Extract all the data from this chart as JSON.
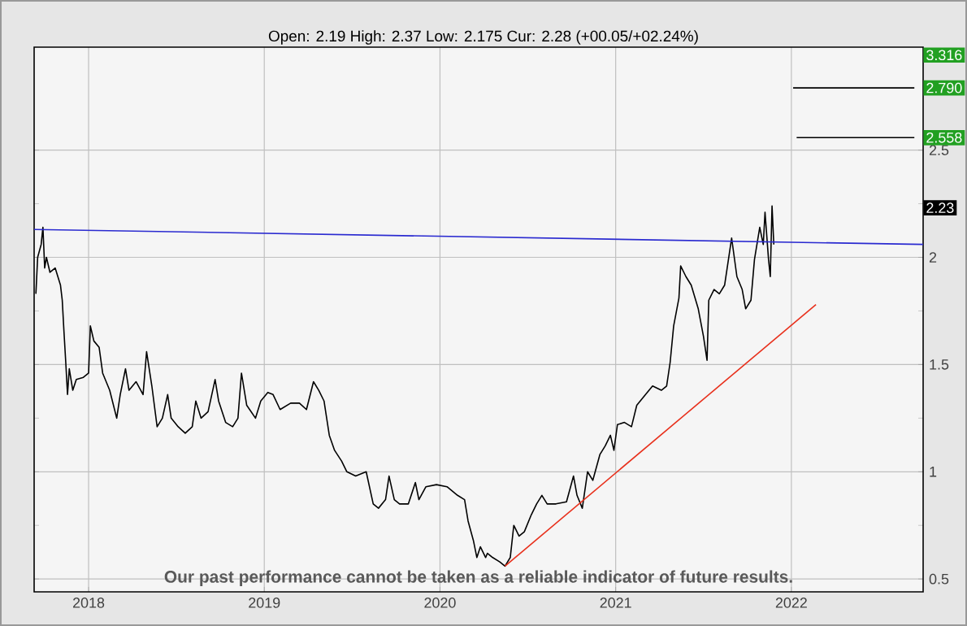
{
  "chart_data": {
    "type": "line",
    "subtitle": "Open: 2.19 High: 2.37 Low: 2.175 Cur: 2.28 (+00.05/+02.24%)",
    "annotations": [
      "Our past performance cannot be taken as a reliable indicator of future results.",
      "3.316",
      "2.23"
    ],
    "xlim": [
      2017.69,
      2022.75
    ],
    "ylim": [
      0.44,
      2.98
    ],
    "xticks": [
      2018,
      2019,
      2020,
      2021,
      2022
    ],
    "yticks": [
      0.5,
      1,
      1.5,
      2,
      2.5
    ],
    "grid": true,
    "marker": "none",
    "series": [
      {
        "type": "line",
        "color": "#000000",
        "x": [
          2017.7,
          2017.71,
          2017.73,
          2017.74,
          2017.75,
          2017.76,
          2017.78,
          2017.81,
          2017.84,
          2017.85,
          2017.86,
          2017.87,
          2017.88,
          2017.89,
          2017.91,
          2017.93,
          2017.97,
          2018.0,
          2018.01,
          2018.03,
          2018.06,
          2018.08,
          2018.12,
          2018.16,
          2018.18,
          2018.21,
          2018.23,
          2018.27,
          2018.31,
          2018.33,
          2018.36,
          2018.39,
          2018.42,
          2018.45,
          2018.47,
          2018.51,
          2018.55,
          2018.59,
          2018.61,
          2018.64,
          2018.68,
          2018.72,
          2018.74,
          2018.78,
          2018.82,
          2018.85,
          2018.87,
          2018.9,
          2018.95,
          2018.98,
          2019.02,
          2019.05,
          2019.09,
          2019.15,
          2019.2,
          2019.24,
          2019.28,
          2019.31,
          2019.34,
          2019.37,
          2019.4,
          2019.44,
          2019.47,
          2019.52,
          2019.58,
          2019.62,
          2019.65,
          2019.69,
          2019.71,
          2019.74,
          2019.77,
          2019.82,
          2019.86,
          2019.88,
          2019.92,
          2019.98,
          2020.04,
          2020.1,
          2020.14,
          2020.16,
          2020.19,
          2020.21,
          2020.23,
          2020.26,
          2020.27,
          2020.3,
          2020.34,
          2020.37,
          2020.4,
          2020.42,
          2020.45,
          2020.48,
          2020.52,
          2020.55,
          2020.58,
          2020.61,
          2020.66,
          2020.72,
          2020.76,
          2020.78,
          2020.81,
          2020.84,
          2020.87,
          2020.91,
          2020.94,
          2020.97,
          2020.99,
          2021.01,
          2021.05,
          2021.09,
          2021.12,
          2021.17,
          2021.21,
          2021.26,
          2021.29,
          2021.31,
          2021.33,
          2021.36,
          2021.37,
          2021.4,
          2021.43,
          2021.47,
          2021.5,
          2021.52,
          2021.53,
          2021.56,
          2021.59,
          2021.62,
          2021.66,
          2021.69,
          2021.72,
          2021.74,
          2021.77,
          2021.79,
          2021.82,
          2021.84,
          2021.85,
          2021.87,
          2021.88,
          2021.89,
          2021.9
        ],
        "values": [
          1.83,
          2.0,
          2.06,
          2.14,
          1.95,
          2.0,
          1.93,
          1.95,
          1.87,
          1.8,
          1.65,
          1.51,
          1.36,
          1.48,
          1.38,
          1.43,
          1.44,
          1.46,
          1.68,
          1.61,
          1.58,
          1.46,
          1.38,
          1.25,
          1.36,
          1.48,
          1.38,
          1.42,
          1.36,
          1.56,
          1.4,
          1.21,
          1.25,
          1.36,
          1.25,
          1.21,
          1.18,
          1.21,
          1.33,
          1.25,
          1.28,
          1.43,
          1.33,
          1.23,
          1.21,
          1.25,
          1.46,
          1.31,
          1.25,
          1.33,
          1.37,
          1.36,
          1.29,
          1.32,
          1.32,
          1.29,
          1.42,
          1.38,
          1.33,
          1.17,
          1.1,
          1.05,
          1.0,
          0.98,
          1.0,
          0.85,
          0.83,
          0.87,
          0.98,
          0.87,
          0.85,
          0.85,
          0.95,
          0.87,
          0.93,
          0.94,
          0.93,
          0.89,
          0.87,
          0.77,
          0.68,
          0.6,
          0.65,
          0.6,
          0.62,
          0.6,
          0.58,
          0.56,
          0.6,
          0.75,
          0.7,
          0.72,
          0.8,
          0.85,
          0.89,
          0.85,
          0.85,
          0.86,
          0.98,
          0.89,
          0.83,
          1.0,
          0.96,
          1.08,
          1.12,
          1.17,
          1.1,
          1.22,
          1.23,
          1.21,
          1.31,
          1.36,
          1.4,
          1.38,
          1.4,
          1.51,
          1.68,
          1.81,
          1.96,
          1.91,
          1.87,
          1.76,
          1.63,
          1.52,
          1.8,
          1.85,
          1.83,
          1.87,
          2.09,
          1.91,
          1.85,
          1.76,
          1.8,
          1.99,
          2.14,
          2.06,
          2.21,
          1.99,
          1.91,
          2.24,
          2.06
        ]
      },
      {
        "type": "line",
        "color": "#2a2ad0",
        "x": [
          2017.69,
          2022.75
        ],
        "values": [
          2.13,
          2.06
        ]
      },
      {
        "type": "line",
        "color": "#e8301c",
        "x": [
          2020.37,
          2022.14
        ],
        "values": [
          0.56,
          1.78
        ]
      },
      {
        "type": "line",
        "color": "#000000",
        "x": [
          2022.01,
          2022.7
        ],
        "values": [
          2.79,
          2.79
        ],
        "value_labels": [
          null,
          "2.790"
        ]
      },
      {
        "type": "line",
        "color": "#000000",
        "x": [
          2022.03,
          2022.7
        ],
        "values": [
          2.558,
          2.558
        ],
        "value_labels": [
          null,
          "2.558"
        ]
      }
    ]
  }
}
